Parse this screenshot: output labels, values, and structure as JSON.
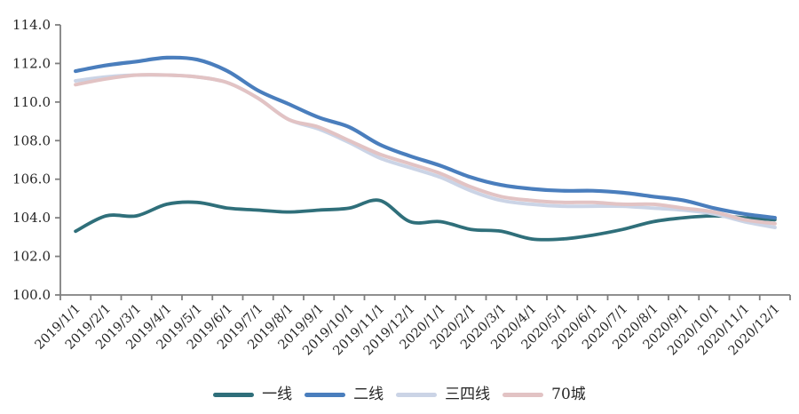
{
  "page": {
    "background": "#ffffff",
    "axis_color": "#7f7f7f",
    "tick_label_color": "#262626"
  },
  "chart_data": {
    "type": "line",
    "title": "",
    "xlabel": "",
    "ylabel": "",
    "grid": false,
    "legend_position": "bottom",
    "ylim": [
      100.0,
      114.0
    ],
    "ytick_step": 2.0,
    "ytick_labels": [
      "100.0",
      "102.0",
      "104.0",
      "106.0",
      "108.0",
      "110.0",
      "112.0",
      "114.0"
    ],
    "x": [
      "2019/1/1",
      "2019/2/1",
      "2019/3/1",
      "2019/4/1",
      "2019/5/1",
      "2019/6/1",
      "2019/7/1",
      "2019/8/1",
      "2019/9/1",
      "2019/10/1",
      "2019/11/1",
      "2019/12/1",
      "2020/1/1",
      "2020/2/1",
      "2020/3/1",
      "2020/4/1",
      "2020/5/1",
      "2020/6/1",
      "2020/7/1",
      "2020/8/1",
      "2020/9/1",
      "2020/10/1",
      "2020/11/1",
      "2020/12/1"
    ],
    "series": [
      {
        "name": "一线",
        "color": "#2f6f7a",
        "width": 3.8,
        "values": [
          103.3,
          104.1,
          104.1,
          104.7,
          104.8,
          104.5,
          104.4,
          104.3,
          104.4,
          104.5,
          104.9,
          103.8,
          103.8,
          103.4,
          103.3,
          102.9,
          102.9,
          103.1,
          103.4,
          103.8,
          104.0,
          104.1,
          104.0,
          103.9
        ]
      },
      {
        "name": "二线",
        "color": "#4a7ebd",
        "width": 4.2,
        "values": [
          111.6,
          111.9,
          112.1,
          112.3,
          112.2,
          111.6,
          110.6,
          109.9,
          109.2,
          108.7,
          107.8,
          107.2,
          106.7,
          106.1,
          105.7,
          105.5,
          105.4,
          105.4,
          105.3,
          105.1,
          104.9,
          104.5,
          104.2,
          104.0
        ]
      },
      {
        "name": "三四线",
        "color": "#cbd4e6",
        "width": 4.0,
        "values": [
          111.1,
          111.3,
          111.4,
          111.4,
          111.3,
          111.0,
          110.2,
          109.1,
          108.6,
          107.9,
          107.1,
          106.6,
          106.1,
          105.4,
          104.9,
          104.7,
          104.6,
          104.6,
          104.6,
          104.5,
          104.4,
          104.2,
          103.8,
          103.5
        ]
      },
      {
        "name": "70城",
        "color": "#e2c3c4",
        "width": 4.0,
        "values": [
          110.9,
          111.2,
          111.4,
          111.4,
          111.3,
          111.0,
          110.2,
          109.1,
          108.7,
          108.0,
          107.3,
          106.8,
          106.3,
          105.6,
          105.1,
          104.9,
          104.8,
          104.8,
          104.7,
          104.7,
          104.5,
          104.3,
          103.9,
          103.7
        ]
      }
    ],
    "legend_entries": [
      "一线",
      "二线",
      "三四线",
      "70城"
    ]
  }
}
